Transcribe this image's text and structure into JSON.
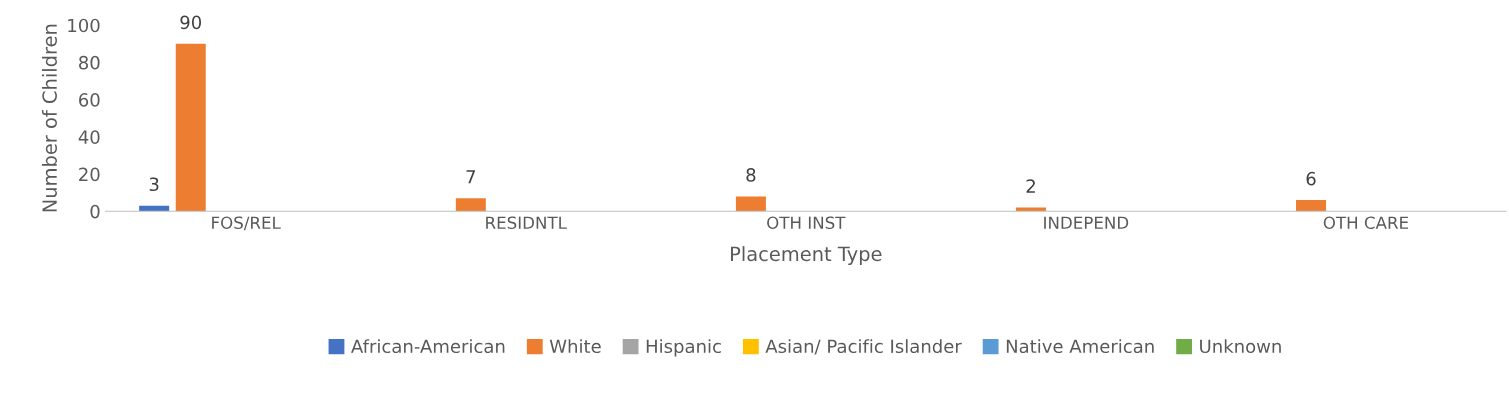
{
  "chart_data": {
    "type": "bar",
    "xlabel": "Placement Type",
    "ylabel": "Number of Children",
    "categories": [
      "FOS/REL",
      "RESIDNTL",
      "OTH INST",
      "INDEPEND",
      "OTH CARE"
    ],
    "series": [
      {
        "name": "African-American",
        "color": "#4472c4",
        "values": [
          3,
          0,
          0,
          0,
          0
        ],
        "value_labels": [
          "3",
          null,
          null,
          null,
          null
        ]
      },
      {
        "name": "White",
        "color": "#ed7d31",
        "values": [
          90,
          7,
          8,
          2,
          6
        ],
        "value_labels": [
          "90",
          "7",
          "8",
          "2",
          "6"
        ]
      },
      {
        "name": "Hispanic",
        "color": "#a5a5a5",
        "values": [
          0,
          0,
          0,
          0,
          0
        ],
        "value_labels": [
          null,
          null,
          null,
          null,
          null
        ]
      },
      {
        "name": "Asian/ Pacific Islander",
        "color": "#ffc000",
        "values": [
          0,
          0,
          0,
          0,
          0
        ],
        "value_labels": [
          null,
          null,
          null,
          null,
          null
        ]
      },
      {
        "name": "Native American",
        "color": "#5b9bd5",
        "values": [
          0,
          0,
          0,
          0,
          0
        ],
        "value_labels": [
          null,
          null,
          null,
          null,
          null
        ]
      },
      {
        "name": "Unknown",
        "color": "#70ad47",
        "values": [
          0,
          0,
          0,
          0,
          0
        ],
        "value_labels": [
          null,
          null,
          null,
          null,
          null
        ]
      }
    ],
    "ylim": [
      0,
      100
    ],
    "yticks": [
      0,
      20,
      40,
      60,
      80,
      100
    ],
    "grid": false,
    "legend": "bottom"
  }
}
